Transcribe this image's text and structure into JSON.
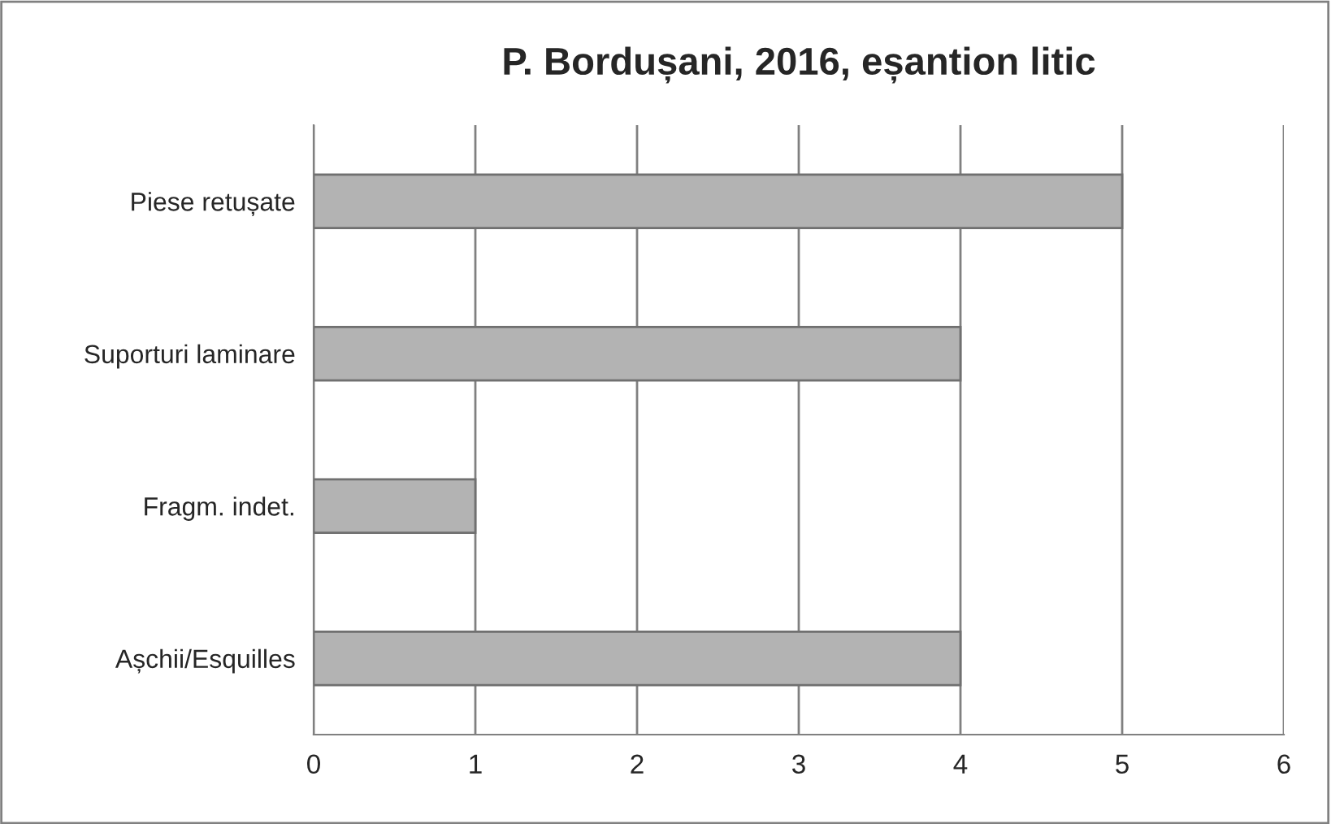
{
  "chart_data": {
    "type": "bar",
    "orientation": "horizontal",
    "title": "P. Bordușani, 2016, eșantion litic",
    "categories": [
      "Piese retușate",
      "Suporturi laminare",
      "Fragm. indet.",
      "Așchii/Esquilles"
    ],
    "values": [
      5,
      4,
      1,
      4
    ],
    "color": "#b3b3b3",
    "xlim": [
      0,
      6
    ],
    "xticks": [
      0,
      1,
      2,
      3,
      4,
      5,
      6
    ],
    "grid": "x"
  }
}
